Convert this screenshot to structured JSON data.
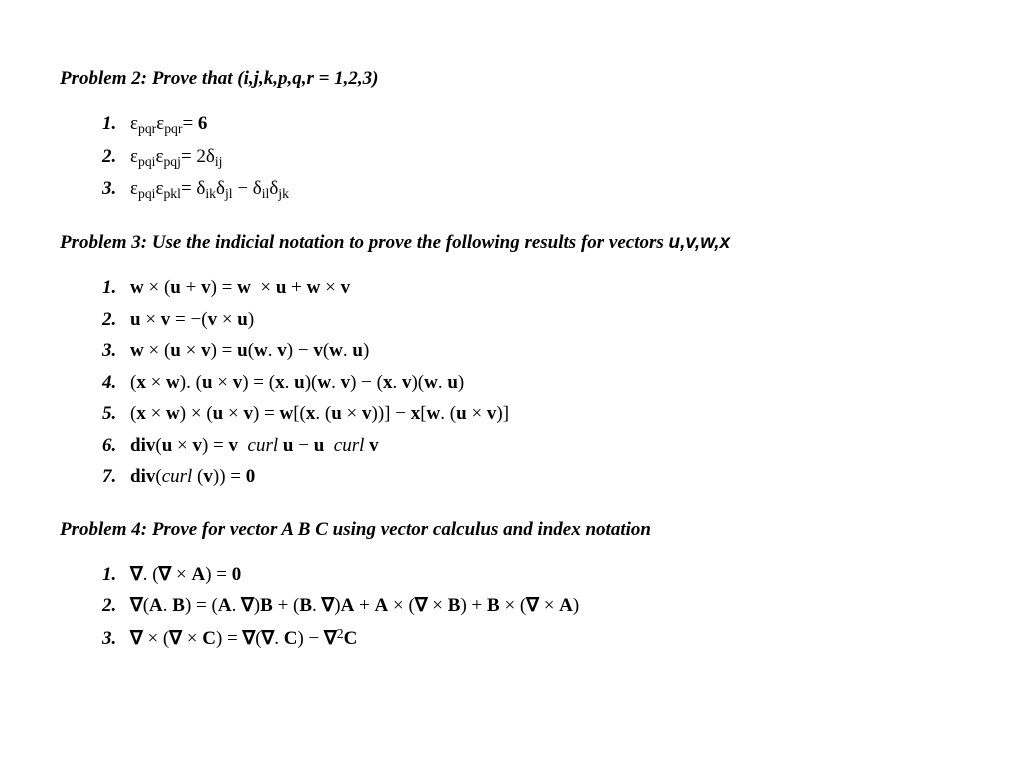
{
  "problem2": {
    "heading": "Problem 2: Prove that (i,j,k,p,q,r = 1,2,3)",
    "items": [
      {
        "n": "1.",
        "html": "&epsilon;<sub>pqr</sub>&epsilon;<sub>pqr</sub>= <span class='bold'>6</span>"
      },
      {
        "n": "2.",
        "html": "&epsilon;<sub>pqi</sub>&epsilon;<sub>pqj</sub>= 2&delta;<sub>ij</sub>"
      },
      {
        "n": "3.",
        "html": "&epsilon;<sub>pqi</sub>&epsilon;<sub>pkl</sub>= &delta;<sub>ik</sub>&delta;<sub>jl</sub> &minus; &delta;<sub>il</sub>&delta;<sub>jk</sub>"
      }
    ]
  },
  "problem3": {
    "heading_prefix": "Problem 3: Use the indicial notation to prove the following results for vectors ",
    "heading_vectors": "u,v,w,x",
    "items": [
      {
        "n": "1.",
        "html": "<span class='bold'>w</span> &times; (<span class='bold'>u</span> + <span class='bold'>v</span>) = <span class='bold'>w</span> &nbsp;&times; <span class='bold'>u</span> + <span class='bold'>w</span> &times; <span class='bold'>v</span>"
      },
      {
        "n": "2.",
        "html": "<span class='bold'>u</span> &times; <span class='bold'>v</span> = &minus;(<span class='bold'>v</span> &times; <span class='bold'>u</span>)"
      },
      {
        "n": "3.",
        "html": "<span class='bold'>w</span> &times; (<span class='bold'>u</span> &times; <span class='bold'>v</span>) = <span class='bold'>u</span>(<span class='bold'>w</span>. <span class='bold'>v</span>) &minus; <span class='bold'>v</span>(<span class='bold'>w</span>. <span class='bold'>u</span>)"
      },
      {
        "n": "4.",
        "html": "(<span class='bold'>x</span> &times; <span class='bold'>w</span>). (<span class='bold'>u</span> &times; <span class='bold'>v</span>) = (<span class='bold'>x</span>. <span class='bold'>u</span>)(<span class='bold'>w</span>. <span class='bold'>v</span>) &minus; (<span class='bold'>x</span>. <span class='bold'>v</span>)(<span class='bold'>w</span>. <span class='bold'>u</span>)"
      },
      {
        "n": "5.",
        "html": "(<span class='bold'>x</span> &times; <span class='bold'>w</span>) &times; (<span class='bold'>u</span> &times; <span class='bold'>v</span>) = <span class='bold'>w</span>[(<span class='bold'>x</span>. (<span class='bold'>u</span> &times; <span class='bold'>v</span>))] &minus; <span class='bold'>x</span>[<span class='bold'>w</span>. (<span class='bold'>u</span> &times; <span class='bold'>v</span>)]"
      },
      {
        "n": "6.",
        "html": "<span class='bold'>div</span>(<span class='bold'>u</span> &times; <span class='bold'>v</span>) = <span class='bold'>v</span>&nbsp; <span class='ital'>curl</span> <span class='bold'>u</span> &minus; <span class='bold'>u</span>&nbsp; <span class='ital'>curl</span> <span class='bold'>v</span>"
      },
      {
        "n": "7.",
        "html": "<span class='bold'>div</span>(<span class='ital'>curl</span>&nbsp;(<span class='bold'>v</span>)) = <span class='bold'>0</span>"
      }
    ]
  },
  "problem4": {
    "heading": "Problem 4: Prove for vector A B C using vector calculus and index notation",
    "items": [
      {
        "n": "1.",
        "html": "<span class='bold'>&nabla;</span>. (<span class='bold'>&nabla;</span> &times; <span class='bold'>A</span>) = <span class='bold'>0</span>"
      },
      {
        "n": "2.",
        "html": "<span class='bold'>&nabla;</span>(<span class='bold'>A</span>. <span class='bold'>B</span>) = (<span class='bold'>A</span>. <span class='bold'>&nabla;</span>)<span class='bold'>B</span> + (<span class='bold'>B</span>. <span class='bold'>&nabla;</span>)<span class='bold'>A</span> + <span class='bold'>A</span> &times; (<span class='bold'>&nabla;</span> &times; <span class='bold'>B</span>) + <span class='bold'>B</span> &times; (<span class='bold'>&nabla;</span> &times; <span class='bold'>A</span>)"
      },
      {
        "n": "3.",
        "html": "<span class='bold'>&nabla;</span> &times; (<span class='bold'>&nabla;</span> &times; <span class='bold'>C</span>) = <span class='bold'>&nabla;</span>(<span class='bold'>&nabla;</span>. <span class='bold'>C</span>) &minus; <span class='bold'>&nabla;</span><sup>2</sup><span class='bold'>C</span>"
      }
    ]
  }
}
